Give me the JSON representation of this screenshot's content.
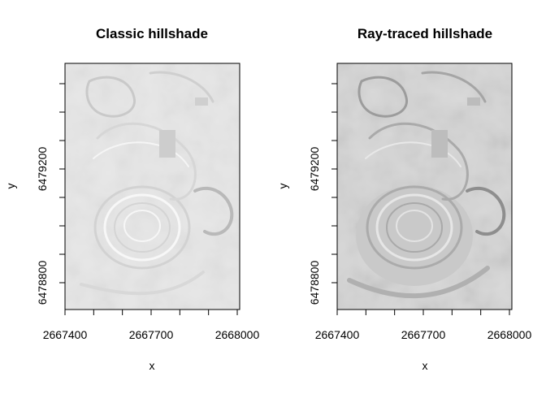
{
  "chart_data": [
    {
      "type": "heatmap",
      "title": "Classic hillshade",
      "xlabel": "x",
      "ylabel": "y",
      "xticks": [
        2667400,
        2667700,
        2668000
      ],
      "yticks": [
        6478800,
        6479200
      ],
      "xlim": [
        2667400,
        2668000
      ],
      "ylim": [
        6478750,
        6479530
      ],
      "colors": {
        "background": "#e7e7e7",
        "light": "#f4f4f4",
        "dark": "#b9b9b9"
      }
    },
    {
      "type": "heatmap",
      "title": "Ray-traced hillshade",
      "xlabel": "x",
      "ylabel": "y",
      "xticks": [
        2667400,
        2667700,
        2668000
      ],
      "yticks": [
        6478800,
        6479200
      ],
      "xlim": [
        2667400,
        2668000
      ],
      "ylim": [
        6478750,
        6479530
      ],
      "colors": {
        "background": "#d6d6d6",
        "light": "#ebebeb",
        "dark": "#9a9a9a"
      }
    }
  ]
}
